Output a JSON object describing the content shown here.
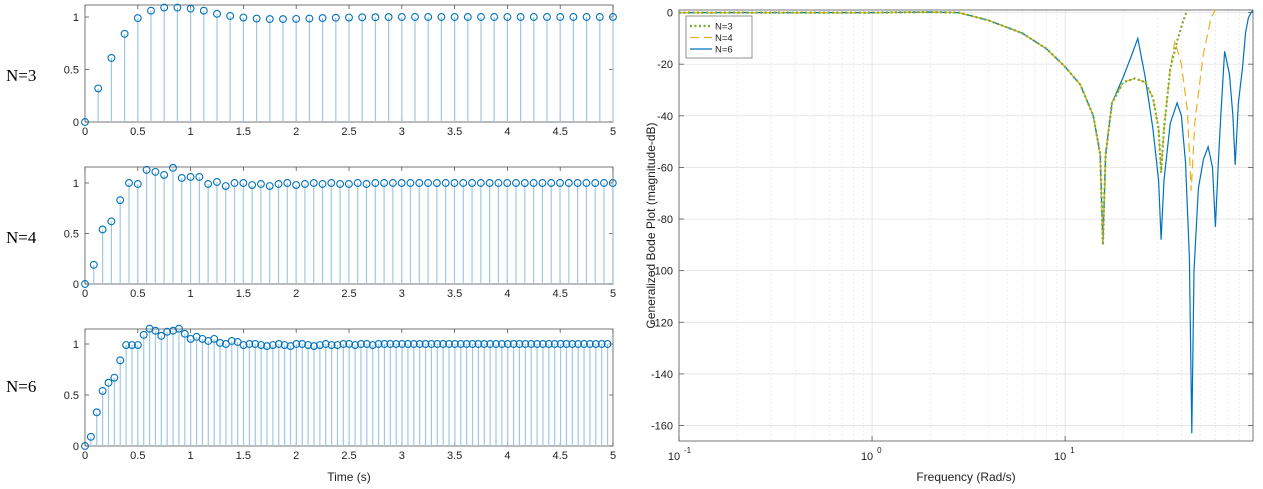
{
  "colors": {
    "stem": "#0072BD",
    "stem_light": "#9fc8e6",
    "n3": "#77AC30",
    "n4": "#EDB120",
    "n6": "#0072BD",
    "grid": "#e3e3e3"
  },
  "row_labels": [
    "N=3",
    "N=4",
    "N=6"
  ],
  "step": {
    "xlabel": "Time (s)",
    "xlim": [
      0,
      5
    ],
    "ylim": [
      0,
      1.1
    ],
    "xticks": [
      "0",
      "0.5",
      "1",
      "1.5",
      "2",
      "2.5",
      "3",
      "3.5",
      "4",
      "4.5",
      "5"
    ],
    "yticks": [
      "0",
      "0.5",
      "1"
    ]
  },
  "bode": {
    "ylabel": "Generalized Bode Plot (magnitude-dB)",
    "xlabel": "Frequency (Rad/s)",
    "yticks": [
      "0",
      "-20",
      "-40",
      "-60",
      "-80",
      "-100",
      "-120",
      "-140",
      "-160"
    ],
    "xticks_base": [
      "10",
      "10",
      "10"
    ],
    "xticks_exp": [
      "-1",
      "0",
      "1"
    ],
    "legend": [
      "N=3",
      "N=4",
      "N=6"
    ]
  },
  "chart_data": [
    {
      "type": "stem",
      "label": "N=3",
      "dt": 0.125,
      "t_start": 0,
      "values": [
        0,
        0.32,
        0.61,
        0.84,
        0.99,
        1.06,
        1.09,
        1.09,
        1.08,
        1.06,
        1.03,
        1.01,
        0.995,
        0.985,
        0.98,
        0.98,
        0.982,
        0.985,
        0.99,
        0.993,
        0.995,
        0.997,
        0.998,
        0.999,
        1.0,
        1.0,
        1.0,
        1.0,
        1.0,
        1.0,
        1.0,
        1.0,
        1.0,
        1.0,
        1.0,
        1.0,
        1.0,
        1.0,
        1.0,
        1.0,
        1.0
      ],
      "xlim": [
        0,
        5
      ],
      "ylim": [
        0,
        1.1
      ]
    },
    {
      "type": "stem",
      "label": "N=4",
      "dt": 0.0833,
      "t_start": 0,
      "values": [
        0,
        0.19,
        0.54,
        0.62,
        0.83,
        1.0,
        0.99,
        1.13,
        1.11,
        1.08,
        1.15,
        1.05,
        1.06,
        1.06,
        0.99,
        1.01,
        0.97,
        1.0,
        1.0,
        0.98,
        0.99,
        0.97,
        0.99,
        1.0,
        0.98,
        0.99,
        1.0,
        0.99,
        1.0,
        0.99,
        0.99,
        1.0,
        0.99,
        1.0,
        1.0,
        1.0,
        1.0,
        1.0,
        1.0,
        1.0,
        1.0,
        1.0,
        1.0,
        1.0,
        1.0,
        1.0,
        1.0,
        1.0,
        1.0,
        1.0,
        1.0,
        1.0,
        1.0,
        1.0,
        1.0,
        1.0,
        1.0,
        1.0,
        1.0,
        1.0,
        1.0
      ],
      "xlim": [
        0,
        5
      ],
      "ylim": [
        0,
        1.1
      ]
    },
    {
      "type": "stem",
      "label": "N=6",
      "dt": 0.0556,
      "t_start": 0,
      "values": [
        0,
        0.09,
        0.33,
        0.54,
        0.62,
        0.67,
        0.84,
        0.99,
        0.99,
        0.99,
        1.09,
        1.15,
        1.13,
        1.08,
        1.12,
        1.13,
        1.15,
        1.1,
        1.05,
        1.07,
        1.05,
        1.03,
        1.05,
        1.01,
        1.0,
        1.03,
        1.02,
        0.99,
        1.0,
        1.0,
        0.99,
        0.98,
        0.99,
        1.0,
        0.99,
        0.98,
        1.0,
        1.0,
        0.99,
        0.98,
        0.99,
        1.0,
        0.99,
        0.99,
        1.0,
        1.0,
        0.99,
        1.0,
        1.0,
        0.99,
        1.0,
        1.0,
        1.0,
        1.0,
        1.0,
        1.0,
        1.0,
        1.0,
        1.0,
        1.0,
        1.0,
        1.0,
        1.0,
        1.0,
        1.0,
        1.0,
        1.0,
        1.0,
        1.0,
        1.0,
        1.0,
        1.0,
        1.0,
        1.0,
        1.0,
        1.0,
        1.0,
        1.0,
        1.0,
        1.0,
        1.0,
        1.0,
        1.0,
        1.0,
        1.0,
        1.0,
        1.0,
        1.0,
        1.0,
        1.0,
        1.0
      ],
      "xlim": [
        0,
        5
      ],
      "ylim": [
        0,
        1.1
      ]
    },
    {
      "type": "line",
      "x_scale": "log",
      "xlim": [
        0.1,
        94
      ],
      "ylim": [
        -166,
        1
      ],
      "series": [
        {
          "name": "N=3",
          "style": "dotted",
          "x": [
            0.1,
            1,
            2,
            2.8,
            4,
            6,
            8,
            10,
            12,
            14,
            15.2,
            15.7,
            16.2,
            17.5,
            20,
            23,
            26,
            28.5,
            30.5,
            31.4,
            32.5,
            35,
            38,
            41,
            43
          ],
          "y": [
            0,
            0,
            0.2,
            0,
            -3,
            -8,
            -14,
            -21,
            -28,
            -40,
            -55,
            -90,
            -55,
            -35,
            -27,
            -25.5,
            -27,
            -33,
            -45,
            -62,
            -45,
            -22,
            -11,
            -3,
            1
          ]
        },
        {
          "name": "N=4",
          "style": "dashed",
          "x": [
            0.1,
            1,
            2,
            2.8,
            4,
            6,
            8,
            10,
            12,
            14,
            15.2,
            15.7,
            16.2,
            17.5,
            20,
            23,
            26,
            28.5,
            30.5,
            31.4,
            32.5,
            35,
            37,
            40,
            43,
            45,
            47,
            52,
            57,
            60
          ],
          "y": [
            0,
            0,
            0.2,
            0,
            -3,
            -8,
            -14,
            -21,
            -28,
            -40,
            -55,
            -90,
            -55,
            -35,
            -27,
            -25.5,
            -27,
            -33,
            -45,
            -62,
            -45,
            -22,
            -11,
            -20,
            -38,
            -69,
            -42,
            -16,
            -2,
            1
          ]
        },
        {
          "name": "N=6",
          "style": "solid",
          "x": [
            0.1,
            1,
            2,
            2.8,
            4,
            6,
            8,
            10,
            12,
            14,
            15.2,
            15.7,
            16.2,
            17.5,
            20,
            22,
            23.8,
            26,
            28.5,
            30.5,
            31.4,
            32.5,
            35,
            38,
            40,
            42,
            44,
            45.3,
            46.5,
            49,
            52,
            55,
            58,
            60,
            62,
            64,
            67,
            71,
            74,
            76,
            79,
            83,
            86,
            89,
            92,
            94
          ],
          "y": [
            0,
            0,
            0.2,
            0,
            -3,
            -8,
            -14,
            -21,
            -28,
            -40,
            -55,
            -90,
            -55,
            -35,
            -25,
            -17,
            -10,
            -25,
            -45,
            -65,
            -88,
            -65,
            -43,
            -35,
            -40,
            -58,
            -95,
            -163,
            -100,
            -68,
            -57,
            -52,
            -60,
            -83,
            -60,
            -40,
            -15,
            -24,
            -40,
            -59,
            -35,
            -21,
            -8,
            -2,
            0,
            1
          ]
        }
      ]
    }
  ]
}
